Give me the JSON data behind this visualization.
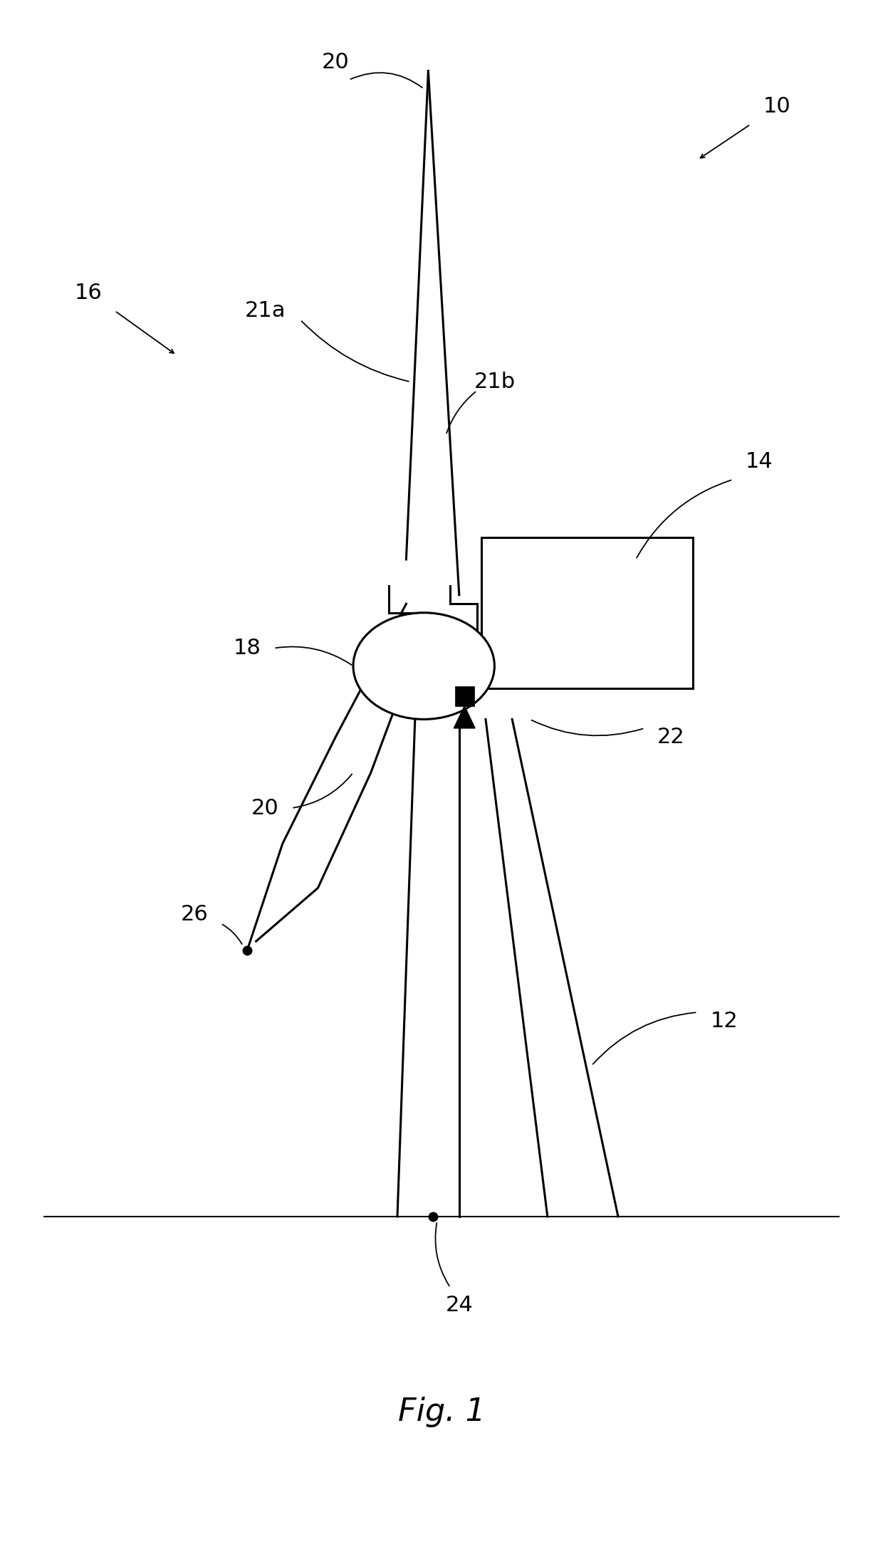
{
  "background_color": "#ffffff",
  "fig_label": "Fig. 1",
  "fig_label_fontsize": 32,
  "label_fontsize": 22,
  "lw": 2.2
}
